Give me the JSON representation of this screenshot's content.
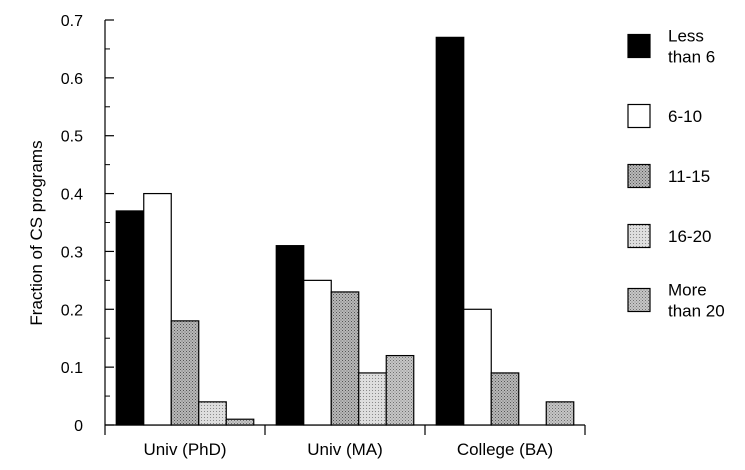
{
  "chart_data": {
    "type": "bar",
    "title": "",
    "xlabel": "",
    "ylabel": "Fraction of CS programs",
    "ylim": [
      0,
      0.7
    ],
    "yticks": [
      "0",
      "0.1",
      "0.2",
      "0.3",
      "0.4",
      "0.5",
      "0.6",
      "0.7"
    ],
    "categories": [
      "Univ (PhD)",
      "Univ (MA)",
      "College (BA)"
    ],
    "grid": false,
    "legend_position": "right",
    "series": [
      {
        "name": "Less than 6",
        "values": [
          0.37,
          0.31,
          0.67
        ],
        "color": "#000000",
        "pattern": "solid"
      },
      {
        "name": "6-10",
        "values": [
          0.4,
          0.25,
          0.2
        ],
        "color": "#ffffff",
        "pattern": "solid"
      },
      {
        "name": "11-15",
        "values": [
          0.18,
          0.23,
          0.09
        ],
        "color": "#a0a0a0",
        "pattern": "stipple-dark"
      },
      {
        "name": "16-20",
        "values": [
          0.04,
          0.09,
          0.0
        ],
        "color": "#cfcfcf",
        "pattern": "stipple-light"
      },
      {
        "name": "More than 20",
        "values": [
          0.01,
          0.12,
          0.04
        ],
        "color": "#b4b4b4",
        "pattern": "stipple-mid"
      }
    ]
  }
}
